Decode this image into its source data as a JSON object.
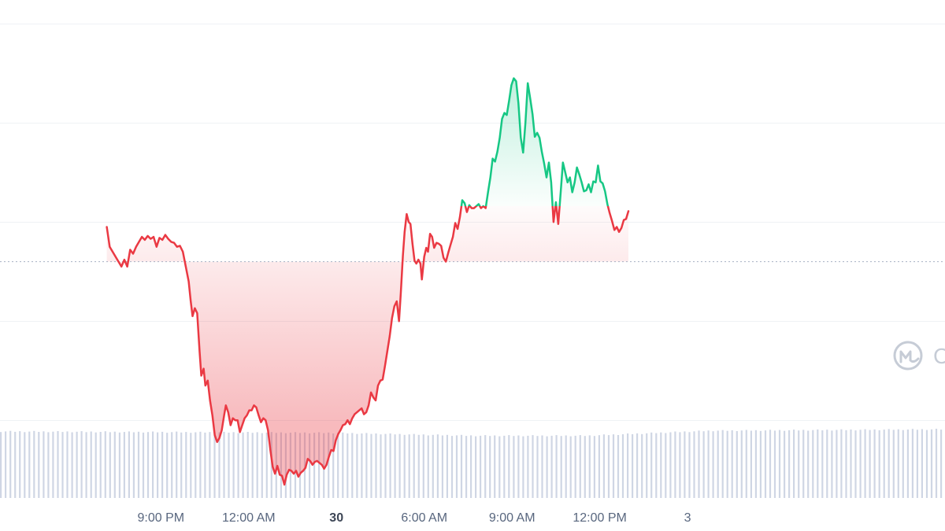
{
  "chart_data": {
    "type": "area",
    "xlabel": "",
    "ylabel": "",
    "baseline": 100,
    "ylim": [
      76,
      126.4
    ],
    "xlim": [
      -5.5,
      26.8
    ],
    "grid": true,
    "x_ticks": [
      {
        "x": 0,
        "label": "9:00 PM",
        "bold": false
      },
      {
        "x": 3,
        "label": "12:00 AM",
        "bold": false
      },
      {
        "x": 6,
        "label": "30",
        "bold": true
      },
      {
        "x": 9,
        "label": "6:00 AM",
        "bold": false
      },
      {
        "x": 12,
        "label": "9:00 AM",
        "bold": false
      },
      {
        "x": 15,
        "label": "12:00 PM",
        "bold": false
      },
      {
        "x": 18,
        "label": "3",
        "bold": false
      }
    ],
    "points": [
      [
        -1.85,
        103.5
      ],
      [
        -1.75,
        101.5
      ],
      [
        -1.65,
        101.0
      ],
      [
        -1.55,
        100.5
      ],
      [
        -1.45,
        100.0
      ],
      [
        -1.35,
        99.5
      ],
      [
        -1.25,
        100.2
      ],
      [
        -1.15,
        99.5
      ],
      [
        -1.05,
        101.2
      ],
      [
        -0.95,
        100.8
      ],
      [
        -0.85,
        101.5
      ],
      [
        -0.75,
        102.0
      ],
      [
        -0.65,
        102.5
      ],
      [
        -0.55,
        102.2
      ],
      [
        -0.45,
        102.6
      ],
      [
        -0.35,
        102.3
      ],
      [
        -0.25,
        102.5
      ],
      [
        -0.15,
        101.5
      ],
      [
        -0.05,
        102.4
      ],
      [
        0.05,
        102.2
      ],
      [
        0.15,
        102.7
      ],
      [
        0.25,
        102.3
      ],
      [
        0.35,
        102.0
      ],
      [
        0.45,
        101.9
      ],
      [
        0.55,
        101.5
      ],
      [
        0.65,
        101.6
      ],
      [
        0.75,
        101.0
      ],
      [
        0.85,
        99.5
      ],
      [
        0.95,
        98.0
      ],
      [
        1.02,
        96.0
      ],
      [
        1.08,
        94.5
      ],
      [
        1.16,
        95.3
      ],
      [
        1.24,
        94.8
      ],
      [
        1.32,
        91.0
      ],
      [
        1.38,
        88.5
      ],
      [
        1.46,
        89.2
      ],
      [
        1.52,
        87.5
      ],
      [
        1.6,
        88.0
      ],
      [
        1.68,
        86.0
      ],
      [
        1.76,
        84.5
      ],
      [
        1.84,
        82.5
      ],
      [
        1.92,
        81.8
      ],
      [
        2.0,
        82.2
      ],
      [
        2.08,
        83.0
      ],
      [
        2.16,
        84.5
      ],
      [
        2.22,
        85.5
      ],
      [
        2.3,
        84.8
      ],
      [
        2.38,
        83.5
      ],
      [
        2.46,
        84.2
      ],
      [
        2.54,
        84.0
      ],
      [
        2.62,
        84.0
      ],
      [
        2.7,
        82.8
      ],
      [
        2.78,
        83.5
      ],
      [
        2.86,
        84.2
      ],
      [
        2.94,
        84.5
      ],
      [
        3.02,
        85.0
      ],
      [
        3.1,
        85.0
      ],
      [
        3.18,
        85.5
      ],
      [
        3.26,
        85.3
      ],
      [
        3.34,
        84.5
      ],
      [
        3.42,
        83.8
      ],
      [
        3.5,
        84.2
      ],
      [
        3.58,
        84.0
      ],
      [
        3.66,
        83.0
      ],
      [
        3.74,
        81.0
      ],
      [
        3.82,
        79.3
      ],
      [
        3.9,
        78.6
      ],
      [
        3.98,
        79.4
      ],
      [
        4.06,
        78.5
      ],
      [
        4.14,
        78.4
      ],
      [
        4.22,
        77.5
      ],
      [
        4.3,
        78.5
      ],
      [
        4.38,
        79.0
      ],
      [
        4.46,
        78.9
      ],
      [
        4.54,
        78.6
      ],
      [
        4.62,
        78.9
      ],
      [
        4.7,
        78.3
      ],
      [
        4.78,
        78.7
      ],
      [
        4.86,
        78.9
      ],
      [
        4.94,
        79.2
      ],
      [
        5.02,
        80.1
      ],
      [
        5.1,
        79.9
      ],
      [
        5.18,
        79.5
      ],
      [
        5.26,
        79.8
      ],
      [
        5.34,
        79.9
      ],
      [
        5.42,
        79.7
      ],
      [
        5.5,
        79.5
      ],
      [
        5.58,
        79.1
      ],
      [
        5.66,
        79.5
      ],
      [
        5.74,
        80.3
      ],
      [
        5.82,
        81.0
      ],
      [
        5.9,
        80.9
      ],
      [
        5.98,
        82.0
      ],
      [
        6.06,
        82.6
      ],
      [
        6.14,
        83.0
      ],
      [
        6.22,
        83.5
      ],
      [
        6.3,
        83.6
      ],
      [
        6.38,
        84.0
      ],
      [
        6.46,
        83.6
      ],
      [
        6.54,
        84.2
      ],
      [
        6.62,
        84.6
      ],
      [
        6.7,
        84.8
      ],
      [
        6.78,
        85.0
      ],
      [
        6.86,
        85.2
      ],
      [
        6.94,
        84.6
      ],
      [
        7.02,
        84.8
      ],
      [
        7.1,
        85.5
      ],
      [
        7.18,
        86.8
      ],
      [
        7.26,
        86.3
      ],
      [
        7.34,
        86.0
      ],
      [
        7.42,
        87.5
      ],
      [
        7.5,
        88.0
      ],
      [
        7.58,
        88.1
      ],
      [
        7.66,
        89.5
      ],
      [
        7.74,
        91.0
      ],
      [
        7.82,
        92.5
      ],
      [
        7.9,
        94.3
      ],
      [
        7.98,
        95.5
      ],
      [
        8.06,
        96.0
      ],
      [
        8.14,
        94.0
      ],
      [
        8.2,
        96.9
      ],
      [
        8.27,
        100.6
      ],
      [
        8.33,
        103.0
      ],
      [
        8.4,
        104.8
      ],
      [
        8.47,
        104.0
      ],
      [
        8.53,
        103.8
      ],
      [
        8.6,
        101.8
      ],
      [
        8.67,
        100.1
      ],
      [
        8.73,
        99.8
      ],
      [
        8.8,
        100.2
      ],
      [
        8.87,
        99.8
      ],
      [
        8.92,
        98.2
      ],
      [
        9.0,
        100.5
      ],
      [
        9.07,
        101.4
      ],
      [
        9.13,
        101.0
      ],
      [
        9.2,
        102.8
      ],
      [
        9.27,
        102.5
      ],
      [
        9.34,
        101.4
      ],
      [
        9.42,
        101.9
      ],
      [
        9.5,
        101.8
      ],
      [
        9.58,
        101.6
      ],
      [
        9.66,
        100.4
      ],
      [
        9.74,
        100.0
      ],
      [
        9.82,
        100.9
      ],
      [
        9.9,
        101.7
      ],
      [
        9.98,
        102.5
      ],
      [
        10.06,
        103.9
      ],
      [
        10.14,
        103.3
      ],
      [
        10.22,
        104.5
      ],
      [
        10.3,
        106.2
      ],
      [
        10.38,
        105.9
      ],
      [
        10.46,
        105.0
      ],
      [
        10.54,
        105.7
      ],
      [
        10.62,
        105.4
      ],
      [
        10.7,
        105.4
      ],
      [
        10.78,
        105.6
      ],
      [
        10.86,
        105.8
      ],
      [
        10.94,
        105.4
      ],
      [
        11.02,
        105.6
      ],
      [
        11.1,
        105.4
      ],
      [
        11.18,
        107.0
      ],
      [
        11.26,
        108.5
      ],
      [
        11.34,
        110.4
      ],
      [
        11.42,
        110.1
      ],
      [
        11.5,
        111.1
      ],
      [
        11.58,
        112.5
      ],
      [
        11.66,
        114.4
      ],
      [
        11.74,
        115.0
      ],
      [
        11.82,
        114.8
      ],
      [
        11.9,
        116.2
      ],
      [
        11.98,
        117.8
      ],
      [
        12.06,
        118.5
      ],
      [
        12.14,
        118.2
      ],
      [
        12.22,
        116.0
      ],
      [
        12.3,
        112.5
      ],
      [
        12.38,
        111.0
      ],
      [
        12.46,
        114.0
      ],
      [
        12.54,
        118.0
      ],
      [
        12.62,
        116.5
      ],
      [
        12.7,
        114.9
      ],
      [
        12.78,
        112.6
      ],
      [
        12.86,
        113.0
      ],
      [
        12.94,
        112.5
      ],
      [
        13.02,
        111.1
      ],
      [
        13.1,
        109.9
      ],
      [
        13.18,
        108.5
      ],
      [
        13.26,
        110.0
      ],
      [
        13.34,
        108.0
      ],
      [
        13.42,
        104.0
      ],
      [
        13.5,
        106.0
      ],
      [
        13.58,
        103.8
      ],
      [
        13.66,
        106.8
      ],
      [
        13.74,
        110.0
      ],
      [
        13.82,
        109.0
      ],
      [
        13.9,
        108.0
      ],
      [
        13.98,
        108.5
      ],
      [
        14.06,
        107.0
      ],
      [
        14.14,
        108.0
      ],
      [
        14.22,
        109.5
      ],
      [
        14.3,
        108.8
      ],
      [
        14.38,
        108.0
      ],
      [
        14.46,
        107.1
      ],
      [
        14.54,
        107.2
      ],
      [
        14.62,
        107.8
      ],
      [
        14.7,
        107.0
      ],
      [
        14.78,
        108.1
      ],
      [
        14.86,
        108.0
      ],
      [
        14.94,
        109.7
      ],
      [
        15.02,
        108.1
      ],
      [
        15.1,
        107.9
      ],
      [
        15.18,
        107.1
      ],
      [
        15.26,
        105.8
      ],
      [
        15.34,
        104.9
      ],
      [
        15.42,
        104.1
      ],
      [
        15.5,
        103.2
      ],
      [
        15.58,
        103.5
      ],
      [
        15.66,
        103.0
      ],
      [
        15.74,
        103.4
      ],
      [
        15.82,
        104.2
      ],
      [
        15.9,
        104.3
      ],
      [
        15.98,
        105.1
      ]
    ],
    "volume": {
      "x_start": -1.85,
      "x_end": 15.98,
      "count": 200,
      "levels": [
        [
          0,
          0.92
        ],
        [
          0.35,
          0.9
        ],
        [
          0.5,
          0.86
        ],
        [
          0.62,
          0.86
        ],
        [
          0.75,
          0.93
        ],
        [
          1,
          0.95
        ]
      ]
    },
    "colors": {
      "up": "#16c784",
      "down": "#ea3943",
      "grid": "#eff2f5",
      "baseline": "#a6b0c3",
      "volume": "#cfd6e4"
    },
    "watermark": {
      "icon": "coinmarketcap-logo-icon",
      "text": "C"
    }
  }
}
